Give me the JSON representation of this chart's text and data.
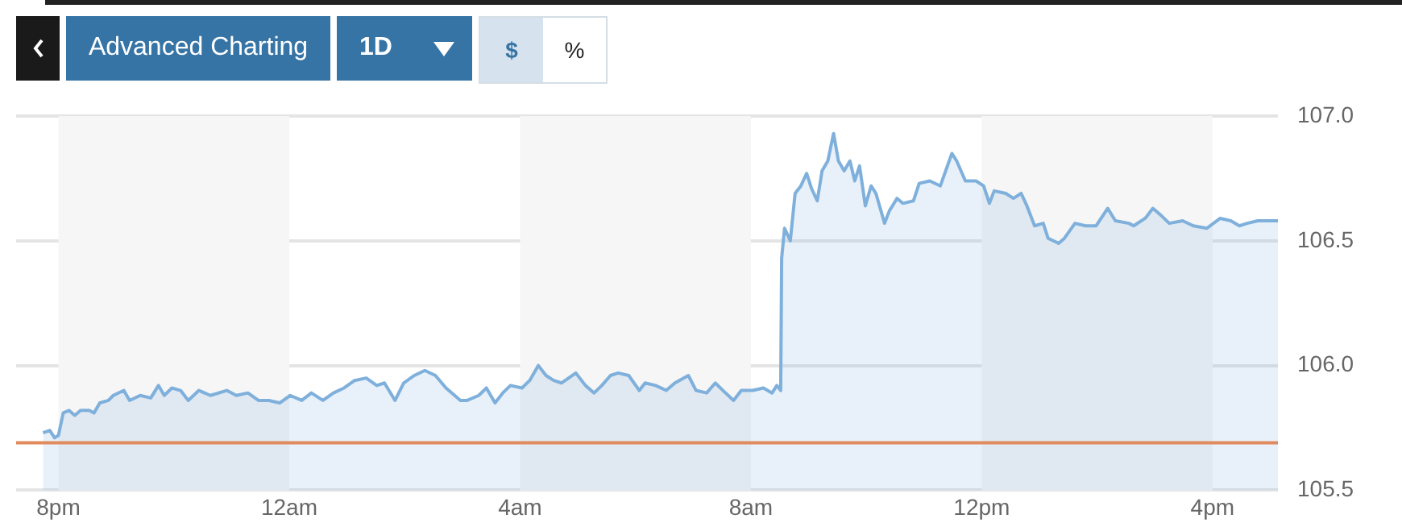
{
  "chart_data": {
    "type": "area",
    "marker": "none",
    "grid": "y",
    "annotations": [
      "Advanced Charting",
      "1D",
      "$",
      "%"
    ],
    "xlim": [
      "--01-01T19:16",
      "--01-02T17:08"
    ],
    "ylim": [
      105.5,
      107.0
    ],
    "xticks": [
      {
        "value": "--01-01T20:00",
        "label": "8pm"
      },
      {
        "value": "--01-02T00:00",
        "label": "12am"
      },
      {
        "value": "--01-02T04:00",
        "label": "4am"
      },
      {
        "value": "--01-02T08:00",
        "label": "8am"
      },
      {
        "value": "--01-02T12:00",
        "label": "12pm"
      },
      {
        "value": "--01-02T16:00",
        "label": "4pm"
      }
    ],
    "yticks": [
      {
        "value": 105.5,
        "label": "105.5"
      },
      {
        "value": 106,
        "label": "106.0"
      },
      {
        "value": 106.5,
        "label": "106.5"
      },
      {
        "value": 107,
        "label": "107.0"
      }
    ],
    "bands": [
      {
        "axis": "x",
        "from": "--01-01T20:00",
        "to": "--01-02T00:00",
        "color": "#f6f6f6"
      },
      {
        "axis": "x",
        "from": "--01-02T04:00",
        "to": "--01-02T08:00",
        "color": "#f6f6f6"
      },
      {
        "axis": "x",
        "from": "--01-02T12:00",
        "to": "--01-02T16:00",
        "color": "#f6f6f6"
      }
    ],
    "ref_lines": [
      {
        "axis": "y",
        "value": 105.69,
        "color": "#e08a5e"
      }
    ],
    "x": [
      "--01-01T19:44",
      "--01-01T19:51",
      "--01-01T19:56",
      "--01-01T20:00",
      "--01-01T20:05",
      "--01-01T20:11",
      "--01-01T20:17",
      "--01-01T20:23",
      "--01-01T20:32",
      "--01-01T20:37",
      "--01-01T20:43",
      "--01-01T20:52",
      "--01-01T20:57",
      "--01-01T21:08",
      "--01-01T21:14",
      "--01-01T21:25",
      "--01-01T21:36",
      "--01-01T21:44",
      "--01-01T21:50",
      "--01-01T21:58",
      "--01-01T22:07",
      "--01-01T22:15",
      "--01-01T22:26",
      "--01-01T22:38",
      "--01-01T22:55",
      "--01-01T23:05",
      "--01-01T23:17",
      "--01-01T23:28",
      "--01-01T23:39",
      "--01-01T23:50",
      "--01-02T00:01",
      "--01-02T00:13",
      "--01-02T00:23",
      "--01-02T00:35",
      "--01-02T00:46",
      "--01-02T00:57",
      "--01-02T01:08",
      "--01-02T01:20",
      "--01-02T01:31",
      "--01-02T01:39",
      "--01-02T01:50",
      "--01-02T01:59",
      "--01-02T02:10",
      "--01-02T02:21",
      "--01-02T02:32",
      "--01-02T02:43",
      "--01-02T02:52",
      "--01-02T02:58",
      "--01-02T03:05",
      "--01-02T03:17",
      "--01-02T03:25",
      "--01-02T03:34",
      "--01-02T03:42",
      "--01-02T03:50",
      "--01-02T04:02",
      "--01-02T04:10",
      "--01-02T04:19",
      "--01-02T04:27",
      "--01-02T04:35",
      "--01-02T04:43",
      "--01-02T04:58",
      "--01-02T05:08",
      "--01-02T05:17",
      "--01-02T05:25",
      "--01-02T05:34",
      "--01-02T05:42",
      "--01-02T05:53",
      "--01-02T06:04",
      "--01-02T06:10",
      "--01-02T06:21",
      "--01-02T06:32",
      "--01-02T06:41",
      "--01-02T06:55",
      "--01-02T07:03",
      "--01-02T07:14",
      "--01-02T07:23",
      "--01-02T07:31",
      "--01-02T07:42",
      "--01-02T07:50",
      "--01-02T08:02",
      "--01-02T08:13",
      "--01-02T08:22",
      "--01-02T08:27",
      "--01-02T08:31",
      "--01-02T08:32",
      "--01-02T08:35",
      "--01-02T08:41",
      "--01-02T08:46",
      "--01-02T08:52",
      "--01-02T08:58",
      "--01-02T09:03",
      "--01-02T09:09",
      "--01-02T09:14",
      "--01-02T09:20",
      "--01-02T09:26",
      "--01-02T09:31",
      "--01-02T09:37",
      "--01-02T09:43",
      "--01-02T09:48",
      "--01-02T09:53",
      "--01-02T09:59",
      "--01-02T10:05",
      "--01-02T10:10",
      "--01-02T10:19",
      "--01-02T10:24",
      "--01-02T10:32",
      "--01-02T10:38",
      "--01-02T10:49",
      "--01-02T10:55",
      "--01-02T11:06",
      "--01-02T11:17",
      "--01-02T11:29",
      "--01-02T11:34",
      "--01-02T11:43",
      "--01-02T11:54",
      "--01-02T12:02",
      "--01-02T12:08",
      "--01-02T12:13",
      "--01-02T12:25",
      "--01-02T12:33",
      "--01-02T12:41",
      "--01-02T12:47",
      "--01-02T12:55",
      "--01-02T13:04",
      "--01-02T13:09",
      "--01-02T13:20",
      "--01-02T13:26",
      "--01-02T13:37",
      "--01-02T13:48",
      "--01-02T13:59",
      "--01-02T14:11",
      "--01-02T14:19",
      "--01-02T14:33",
      "--01-02T14:38",
      "--01-02T14:50",
      "--01-02T14:58",
      "--01-02T15:07",
      "--01-02T15:15",
      "--01-02T15:29",
      "--01-02T15:40",
      "--01-02T15:54",
      "--01-02T16:08",
      "--01-02T16:19",
      "--01-02T16:28",
      "--01-02T16:36",
      "--01-02T16:47",
      "--01-02T16:58",
      "--01-02T17:08"
    ],
    "series": [
      {
        "color": "#7fb0dc",
        "values": [
          105.73,
          105.74,
          105.71,
          105.72,
          105.81,
          105.82,
          105.8,
          105.82,
          105.82,
          105.81,
          105.85,
          105.86,
          105.88,
          105.9,
          105.86,
          105.88,
          105.87,
          105.92,
          105.88,
          105.91,
          105.9,
          105.86,
          105.9,
          105.88,
          105.9,
          105.88,
          105.89,
          105.86,
          105.86,
          105.85,
          105.88,
          105.86,
          105.89,
          105.86,
          105.89,
          105.91,
          105.94,
          105.95,
          105.92,
          105.93,
          105.86,
          105.93,
          105.96,
          105.98,
          105.96,
          105.91,
          105.88,
          105.86,
          105.86,
          105.88,
          105.91,
          105.85,
          105.89,
          105.92,
          105.91,
          105.94,
          106.0,
          105.96,
          105.94,
          105.93,
          105.97,
          105.92,
          105.89,
          105.92,
          105.96,
          105.97,
          105.96,
          105.9,
          105.93,
          105.92,
          105.9,
          105.93,
          105.96,
          105.9,
          105.89,
          105.93,
          105.9,
          105.86,
          105.9,
          105.9,
          105.91,
          105.89,
          105.92,
          105.9,
          106.43,
          106.55,
          106.5,
          106.69,
          106.72,
          106.77,
          106.71,
          106.66,
          106.78,
          106.82,
          106.93,
          106.82,
          106.78,
          106.82,
          106.74,
          106.8,
          106.64,
          106.72,
          106.69,
          106.57,
          106.62,
          106.67,
          106.65,
          106.66,
          106.73,
          106.74,
          106.72,
          106.85,
          106.82,
          106.74,
          106.74,
          106.72,
          106.65,
          106.7,
          106.69,
          106.67,
          106.69,
          106.64,
          106.56,
          106.57,
          106.51,
          106.49,
          106.51,
          106.57,
          106.56,
          106.56,
          106.63,
          106.58,
          106.57,
          106.56,
          106.59,
          106.63,
          106.6,
          106.57,
          106.58,
          106.56,
          106.55,
          106.59,
          106.58,
          106.56,
          106.57,
          106.58,
          106.58,
          106.58
        ]
      }
    ]
  }
}
